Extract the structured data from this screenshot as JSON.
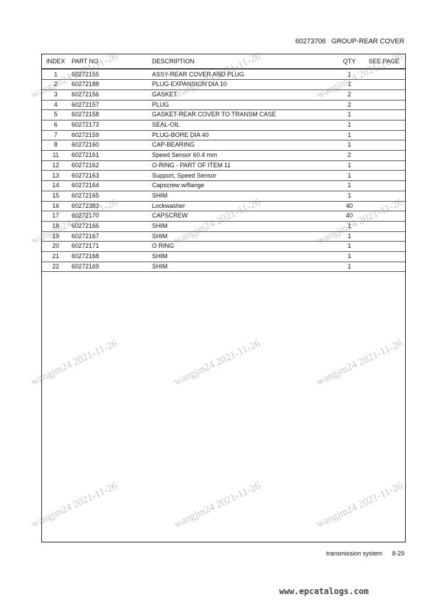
{
  "header": {
    "group_number": "60273706",
    "group_name": "GROUP-REAR COVER"
  },
  "table": {
    "columns": [
      "INDEX",
      "PART NO.",
      "DESCRIPTION",
      "QTY",
      "SEE PAGE"
    ],
    "rows": [
      [
        "1",
        "60272155",
        "ASSY-REAR COVER AND PLUG",
        "1",
        ""
      ],
      [
        "2",
        "60272188",
        "PLUG-EXPANSION DIA 10",
        "1",
        ""
      ],
      [
        "3",
        "60272156",
        "GASKET",
        "2",
        ""
      ],
      [
        "4",
        "60272157",
        "PLUG",
        "2",
        ""
      ],
      [
        "5",
        "60272158",
        "GASKET-REAR COVER TO TRANSM CASE",
        "1",
        ""
      ],
      [
        "6",
        "60272173",
        "SEAL-OIL",
        "1",
        ""
      ],
      [
        "7",
        "60272159",
        "PLUG-BORE DIA 40",
        "1",
        ""
      ],
      [
        "8",
        "60272160",
        "CAP-BEARING",
        "1",
        ""
      ],
      [
        "11",
        "60272161",
        "Speed Sensor 60.4 mm",
        "2",
        ""
      ],
      [
        "12",
        "60272162",
        "O-RING - PART OF ITEM 11",
        "1",
        ""
      ],
      [
        "13",
        "60272163",
        "Support, Speed Sensor",
        "1",
        ""
      ],
      [
        "14",
        "60272164",
        "Capscrew w/flange",
        "1",
        ""
      ],
      [
        "15",
        "60272165",
        "SHIM",
        "1",
        ""
      ],
      [
        "16",
        "60272383",
        "Lockwasher",
        "40",
        ""
      ],
      [
        "17",
        "60272170",
        "CAPSCREW",
        "40",
        ""
      ],
      [
        "18",
        "60272166",
        "SHIM",
        "1",
        ""
      ],
      [
        "19",
        "60272167",
        "SHIM",
        "1",
        ""
      ],
      [
        "20",
        "60272171",
        "O RING",
        "1",
        ""
      ],
      [
        "21",
        "60272168",
        "SHIM",
        "1",
        ""
      ],
      [
        "22",
        "60272169",
        "SHIM",
        "1",
        ""
      ]
    ]
  },
  "footer": {
    "section": "transmission system",
    "page": "8-29"
  },
  "watermark": {
    "text": "wangjm24 2021-11-26",
    "site": "www.epcatalogs.com"
  }
}
